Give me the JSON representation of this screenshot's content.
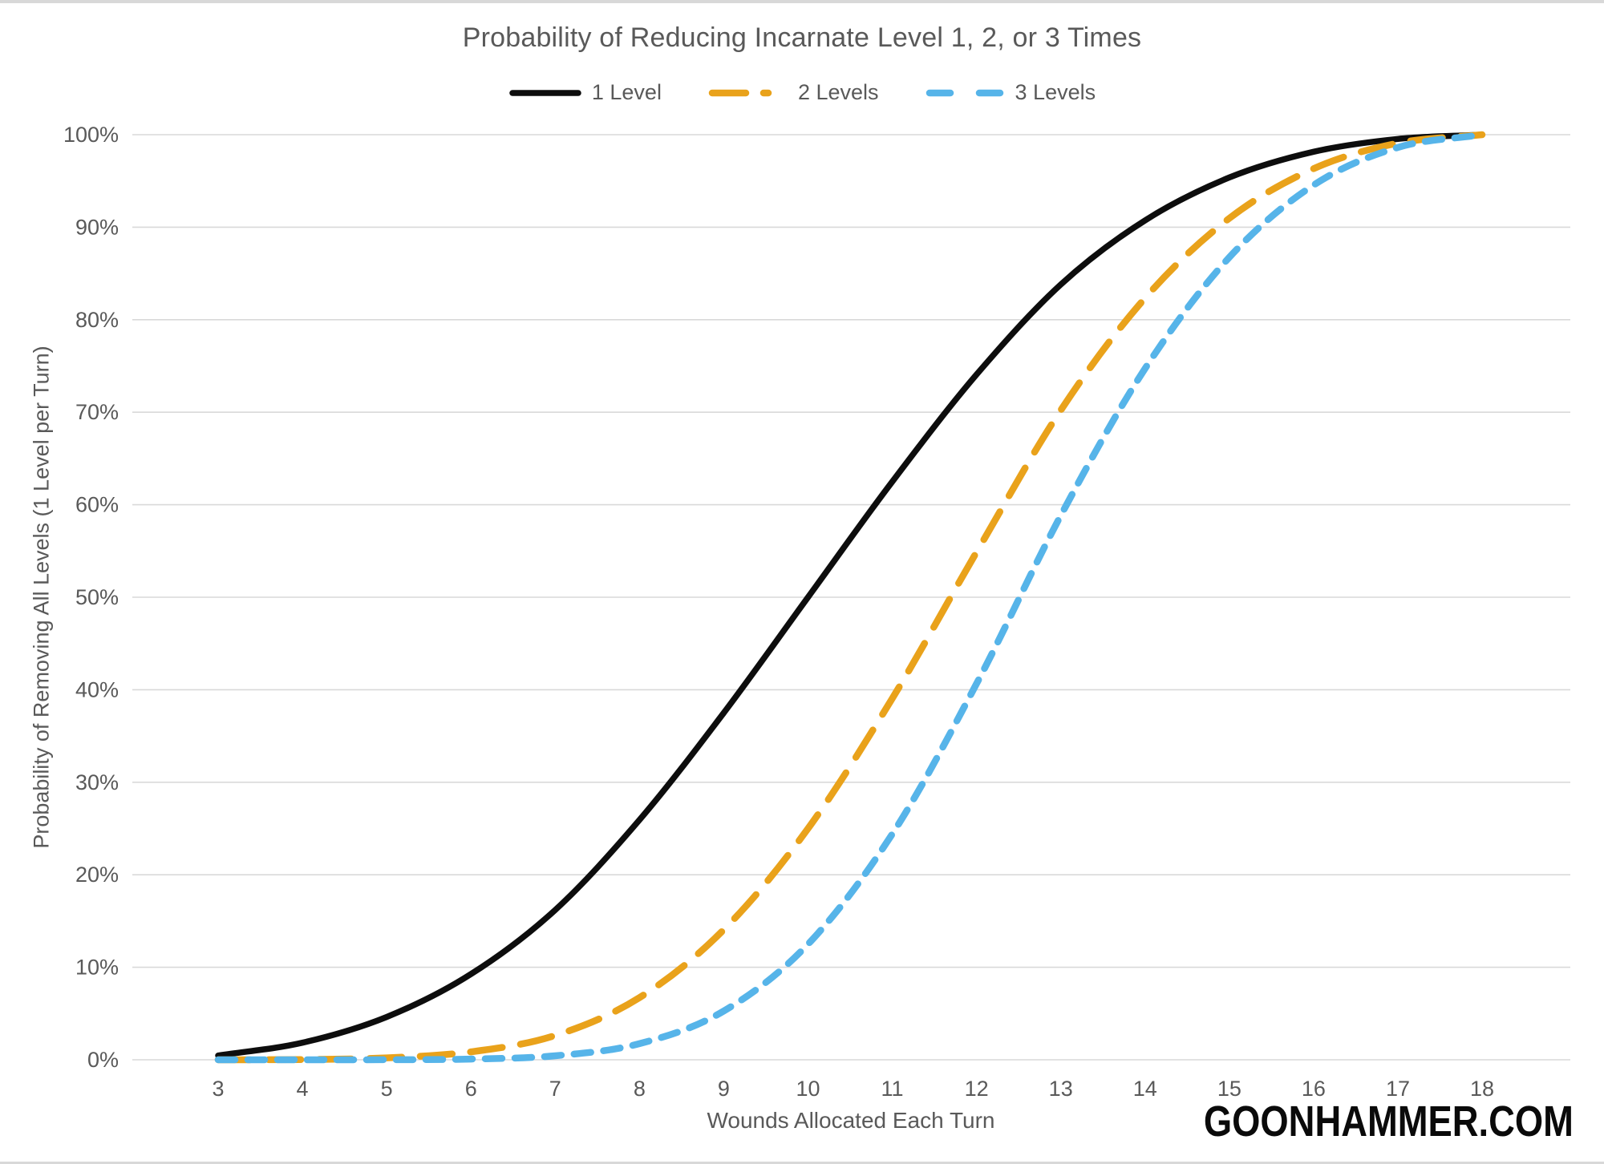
{
  "page": {
    "watermark": "GOONHAMMER.COM"
  },
  "chart_data": {
    "type": "line",
    "title": "Probability of Reducing Incarnate Level 1, 2, or 3 Times",
    "xlabel": "Wounds Allocated Each Turn",
    "ylabel": "Probability of Removing All Levels (1 Level per Turn)",
    "x": [
      3,
      4,
      5,
      6,
      7,
      8,
      9,
      10,
      11,
      12,
      13,
      14,
      15,
      16,
      17,
      18
    ],
    "ylim": [
      0,
      100
    ],
    "y_ticks_percent": [
      0,
      10,
      20,
      30,
      40,
      50,
      60,
      70,
      80,
      90,
      100
    ],
    "y_tick_suffix": "%",
    "grid": true,
    "legend_position": "top",
    "series": [
      {
        "name": "1 Level",
        "color": "#0d0d0d",
        "style": "solid",
        "values_percent": [
          0.46,
          1.85,
          4.63,
          9.26,
          16.2,
          25.93,
          37.5,
          50,
          62.5,
          74.07,
          83.8,
          90.74,
          95.37,
          98.15,
          99.54,
          100
        ]
      },
      {
        "name": "2 Levels",
        "color": "#e9a21b",
        "style": "long-dash",
        "values_percent": [
          0,
          0.03,
          0.21,
          0.86,
          2.63,
          6.72,
          14.06,
          25,
          39.06,
          54.87,
          70.22,
          82.34,
          90.96,
          96.33,
          99.08,
          100
        ]
      },
      {
        "name": "3 Levels",
        "color": "#56b4e9",
        "style": "dash",
        "values_percent": [
          0,
          0,
          0.01,
          0.08,
          0.43,
          1.74,
          5.27,
          12.5,
          24.41,
          40.65,
          58.84,
          74.72,
          86.74,
          94.55,
          98.62,
          100
        ]
      }
    ]
  }
}
